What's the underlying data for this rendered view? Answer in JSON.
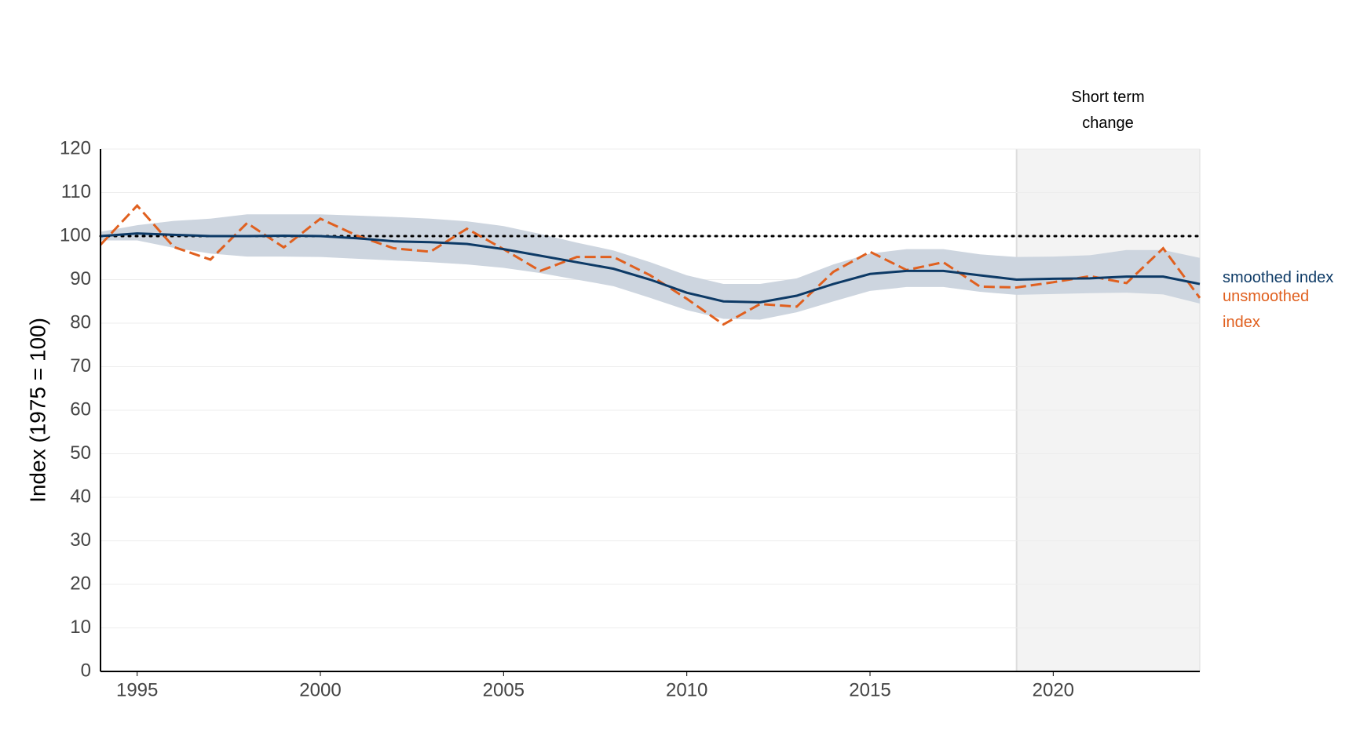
{
  "chart_data": {
    "type": "line",
    "y_label": "Index (1975 = 100)",
    "x": [
      1994,
      1995,
      1996,
      1997,
      1998,
      1999,
      2000,
      2001,
      2002,
      2003,
      2004,
      2005,
      2006,
      2007,
      2008,
      2009,
      2010,
      2011,
      2012,
      2013,
      2014,
      2015,
      2016,
      2017,
      2018,
      2019,
      2020,
      2021,
      2022,
      2023,
      2024
    ],
    "series": [
      {
        "name": "smoothed index",
        "color": "#0d3a66",
        "dash": false,
        "values": [
          100,
          100.6,
          100.3,
          100,
          100,
          100.1,
          100,
          99.5,
          98.8,
          98.6,
          98.2,
          97,
          95.5,
          94,
          92.5,
          90,
          87,
          85,
          84.8,
          86.3,
          89,
          91.3,
          92,
          92,
          91,
          90,
          90.2,
          90.3,
          90.7,
          90.7,
          89
        ],
        "band_color": "#cdd5df",
        "lower": [
          99,
          99,
          97.3,
          96,
          95.3,
          95.3,
          95.2,
          94.8,
          94.4,
          94,
          93.5,
          92.7,
          91.5,
          90,
          88.5,
          85.8,
          83,
          81,
          80.8,
          82.5,
          85,
          87.4,
          88.3,
          88.3,
          87.2,
          86.5,
          86.7,
          86.9,
          87,
          86.6,
          84.5
        ],
        "upper": [
          101,
          102.5,
          103.5,
          104,
          105,
          105,
          105,
          104.7,
          104.4,
          104,
          103.4,
          102.3,
          100.5,
          98.5,
          96.7,
          94,
          91,
          89,
          89,
          90.3,
          93.5,
          96,
          97,
          97,
          95.8,
          95.2,
          95.3,
          95.6,
          96.8,
          96.8,
          95
        ]
      },
      {
        "name": "unsmoothed index",
        "color": "#e0601f",
        "dash": true,
        "values": [
          98,
          107,
          97.5,
          94.6,
          103,
          97.4,
          104,
          100.1,
          97.2,
          96.4,
          101.7,
          97,
          92,
          95.2,
          95.2,
          91,
          85.6,
          79.7,
          84.4,
          83.8,
          91.8,
          96.4,
          92.2,
          94,
          88.4,
          88.2,
          89.4,
          90.8,
          89.2,
          97.2,
          85.8
        ]
      }
    ],
    "reference_line": 100,
    "short_term": {
      "start": 2019,
      "label": "Short term change",
      "color": "#f3f3f3"
    },
    "xlim": [
      1994,
      2024
    ],
    "xticks": [
      1995,
      2000,
      2005,
      2010,
      2015,
      2020
    ],
    "ylim": [
      0,
      120
    ],
    "yticks": [
      0,
      10,
      20,
      30,
      40,
      50,
      60,
      70,
      80,
      90,
      100,
      110,
      120
    ],
    "grid": true
  }
}
